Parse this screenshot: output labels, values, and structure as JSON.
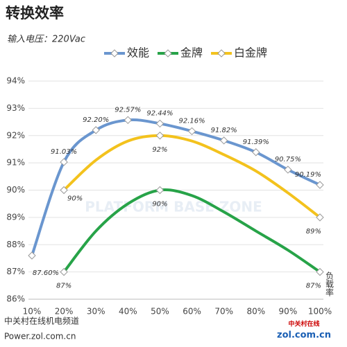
{
  "chart_data": {
    "type": "line",
    "title": "转换效率",
    "subtitle": "输入电压：220Vac",
    "x_label": "负载率",
    "source": [
      "中关村在线机电频道",
      "Power.zol.com.cn"
    ],
    "watermark": "PLATFORM BASE ZONE",
    "logo": [
      "中关村在线",
      "zol.com.cn"
    ],
    "categories": [
      "10%",
      "20%",
      "30%",
      "40%",
      "50%",
      "60%",
      "70%",
      "80%",
      "90%",
      "100%"
    ],
    "series": [
      {
        "name": "效能",
        "color": "#6a96cf",
        "values": [
          87.6,
          91.03,
          92.2,
          92.57,
          92.44,
          92.16,
          91.82,
          91.39,
          90.75,
          90.19
        ],
        "value_labels": [
          "87.60%",
          "91.03%",
          "92.20%",
          "92.57%",
          "92.44%",
          "92.16%",
          "91.82%",
          "91.39%",
          "90.75%",
          "90.19%"
        ]
      },
      {
        "name": "金牌",
        "color": "#27a348",
        "values": [
          null,
          87,
          88.5,
          89.5,
          90,
          89.8,
          89.2,
          88.5,
          87.8,
          87
        ],
        "value_labels": [
          null,
          "87%",
          null,
          null,
          "90%",
          null,
          null,
          null,
          null,
          "87%"
        ]
      },
      {
        "name": "白金牌",
        "color": "#f3c21d",
        "values": [
          null,
          90,
          91.1,
          91.8,
          92,
          91.8,
          91.3,
          90.7,
          89.9,
          89
        ],
        "value_labels": [
          null,
          "90%",
          null,
          null,
          "92%",
          null,
          null,
          null,
          null,
          "89%"
        ]
      }
    ],
    "ylim": [
      86,
      94
    ],
    "yticks": [
      {
        "value": 86,
        "label": "86%"
      },
      {
        "value": 87,
        "label": "87%"
      },
      {
        "value": 88,
        "label": "88%"
      },
      {
        "value": 89,
        "label": "89%"
      },
      {
        "value": 90,
        "label": "90%"
      },
      {
        "value": 91,
        "label": "91%"
      },
      {
        "value": 92,
        "label": "92%"
      },
      {
        "value": 93,
        "label": "93%"
      },
      {
        "value": 94,
        "label": "94%"
      }
    ],
    "grid": true
  }
}
